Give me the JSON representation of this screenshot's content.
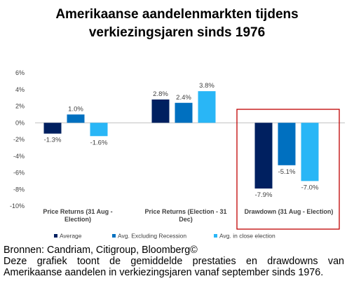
{
  "title_lines": [
    "Amerikaanse aandelenmarkten tijdens",
    "verkiezingsjaren sinds 1976"
  ],
  "caption": {
    "source": "Bronnen: Candriam, Citigroup, Bloomberg©",
    "description": "Deze grafiek toont de gemiddelde prestaties en drawdowns van Amerikaanse aandelen in verkiezingsjaren vanaf september sinds 1976."
  },
  "chart_data": {
    "type": "bar",
    "title": "Amerikaanse aandelenmarkten tijdens verkiezingsjaren sinds 1976",
    "categories": [
      [
        "Price Returns (31 Aug -",
        "Election)"
      ],
      [
        "Price Returns (Election - 31",
        "Dec)"
      ],
      [
        "Drawdown (31 Aug - Election)"
      ]
    ],
    "series": [
      {
        "name": "Average",
        "values": [
          -1.3,
          2.8,
          -7.9
        ],
        "color": "#002060"
      },
      {
        "name": "Avg. Excluding Recession",
        "values": [
          1.0,
          2.4,
          -5.1
        ],
        "color": "#0070C0"
      },
      {
        "name": "Avg. in close election",
        "values": [
          -1.6,
          3.8,
          -7.0
        ],
        "color": "#29B6F6"
      }
    ],
    "value_labels": [
      [
        "-1.3%",
        "2.8%",
        "-7.9%"
      ],
      [
        "1.0%",
        "2.4%",
        "-5.1%"
      ],
      [
        "-1.6%",
        "3.8%",
        "-7.0%"
      ]
    ],
    "ylim": [
      -10,
      6
    ],
    "yticks": [
      6,
      4,
      2,
      0,
      -2,
      -4,
      -6,
      -8,
      -10
    ],
    "ytick_labels": [
      "6%",
      "4%",
      "2%",
      "0%",
      "-2%",
      "-4%",
      "-6%",
      "-8%",
      "-10%"
    ],
    "legend_position": "bottom",
    "grid": false,
    "highlight": {
      "category_index": 2,
      "color": "#C00000"
    }
  }
}
